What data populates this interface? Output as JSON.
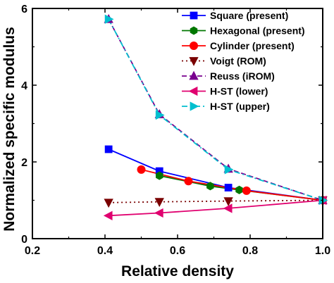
{
  "chart_data": {
    "type": "line",
    "xlabel": "Relative density",
    "ylabel": "Normalized specific modulus",
    "xlim": [
      0.2,
      1.0
    ],
    "ylim": [
      0,
      6
    ],
    "xticks": [
      "0.2",
      "0.4",
      "0.6",
      "0.8",
      "1.0"
    ],
    "yticks": [
      "0",
      "2",
      "4",
      "6"
    ],
    "legend_position": "top-right",
    "series": [
      {
        "name": "Square (present)",
        "color": "#0000ff",
        "marker": "square",
        "line": "solid",
        "x": [
          0.41,
          0.55,
          0.74,
          1.0
        ],
        "y": [
          2.33,
          1.76,
          1.33,
          1.0
        ]
      },
      {
        "name": "Hexagonal (present)",
        "color": "#007700",
        "marker": "hexagon",
        "line": "solid",
        "x": [
          0.55,
          0.69,
          0.77,
          1.0
        ],
        "y": [
          1.64,
          1.37,
          1.27,
          1.0
        ]
      },
      {
        "name": "Cylinder (present)",
        "color": "#ff0000",
        "marker": "circle",
        "line": "solid",
        "x": [
          0.5,
          0.63,
          0.79,
          1.0
        ],
        "y": [
          1.8,
          1.5,
          1.25,
          1.0
        ]
      },
      {
        "name": "Voigt (ROM)",
        "color": "#7a0000",
        "marker": "triangle-down",
        "line": "dotted",
        "x": [
          0.41,
          0.55,
          0.74,
          1.0
        ],
        "y": [
          0.94,
          0.96,
          0.98,
          1.0
        ]
      },
      {
        "name": "Reuss (iROM)",
        "color": "#7a008f",
        "marker": "triangle-up",
        "line": "dashed",
        "x": [
          0.41,
          0.55,
          0.74,
          1.0
        ],
        "y": [
          5.72,
          3.24,
          1.82,
          1.0
        ]
      },
      {
        "name": "H-ST (lower)",
        "color": "#e0006f",
        "marker": "triangle-left",
        "line": "solid",
        "x": [
          0.41,
          0.55,
          0.74,
          1.0
        ],
        "y": [
          0.6,
          0.67,
          0.79,
          1.0
        ]
      },
      {
        "name": "H-ST (upper)",
        "color": "#00bfcf",
        "marker": "triangle-right",
        "line": "dashdot",
        "x": [
          0.41,
          0.55,
          0.74,
          1.0
        ],
        "y": [
          5.72,
          3.22,
          1.8,
          1.0
        ]
      }
    ]
  }
}
